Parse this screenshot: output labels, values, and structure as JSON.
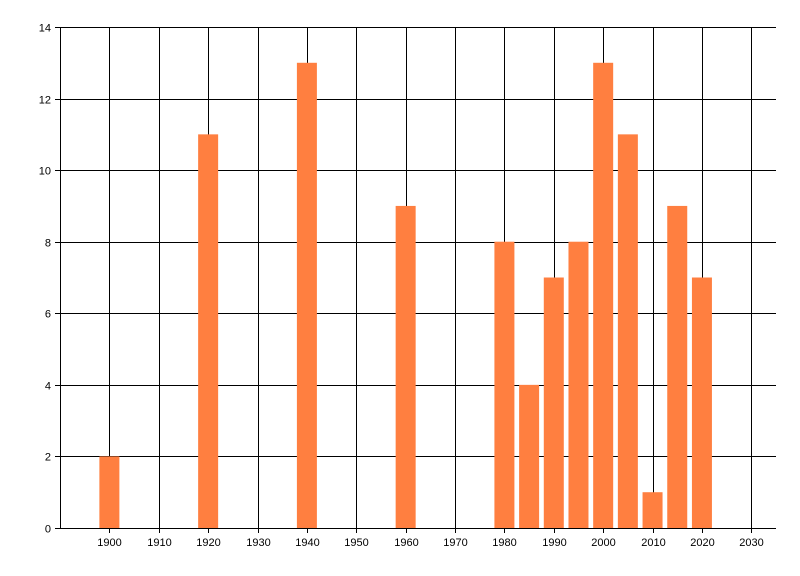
{
  "chart_data": {
    "type": "bar",
    "title": "",
    "xlabel": "",
    "ylabel": "",
    "x": [
      1900,
      1920,
      1940,
      1960,
      1980,
      1985,
      1990,
      1995,
      2000,
      2005,
      2010,
      2015,
      2020
    ],
    "values": [
      2,
      11,
      13,
      9,
      8,
      4,
      7,
      8,
      13,
      11,
      1,
      9,
      7
    ],
    "xlim": [
      1890,
      2035
    ],
    "ylim": [
      0,
      14
    ],
    "x_ticks": [
      1900,
      1910,
      1920,
      1930,
      1940,
      1950,
      1960,
      1970,
      1980,
      1990,
      2000,
      2010,
      2020,
      2030
    ],
    "y_ticks": [
      0,
      2,
      4,
      6,
      8,
      10,
      12,
      14
    ],
    "grid": true,
    "legend": "none",
    "colors": {
      "bar": "#ff7f40",
      "grid": "#000000",
      "axis": "#000000"
    }
  }
}
